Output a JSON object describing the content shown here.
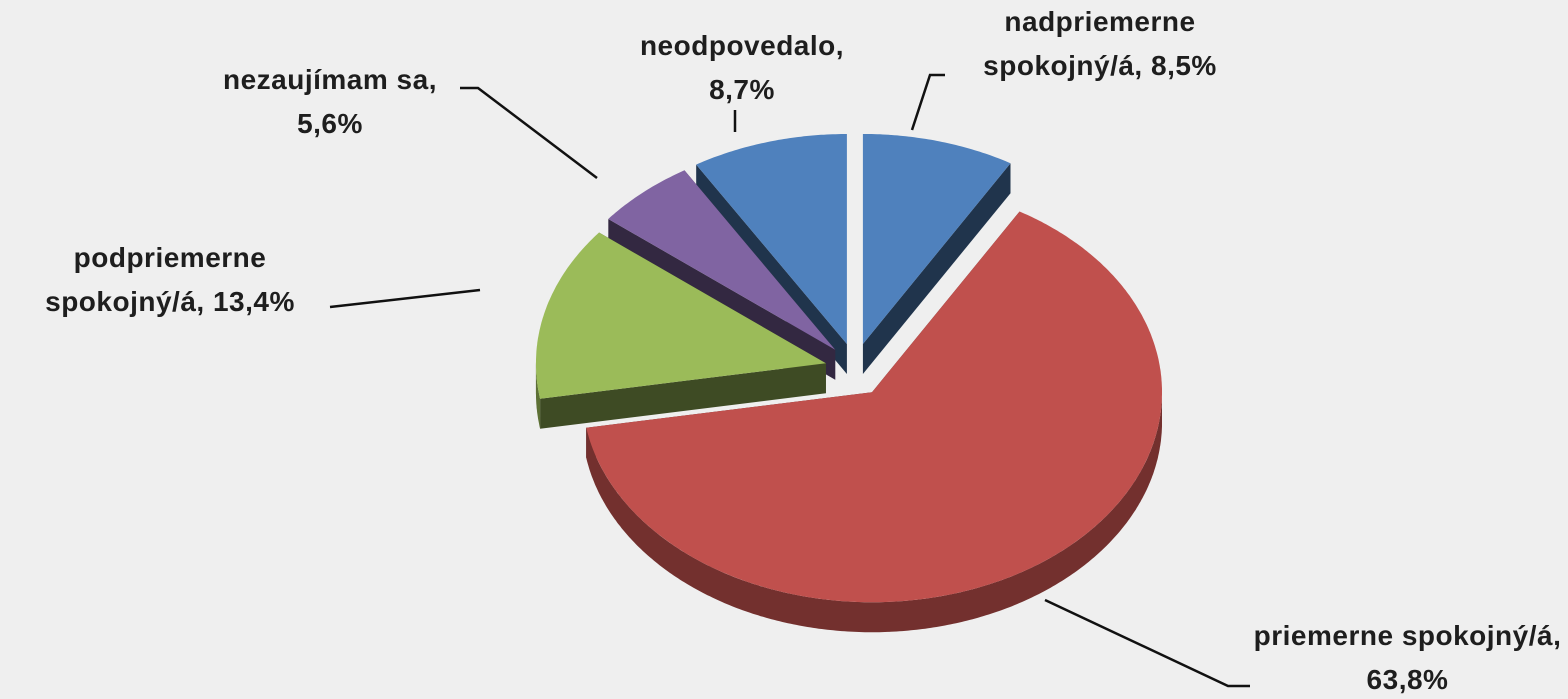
{
  "chart_data": {
    "type": "pie",
    "categories": [
      "nadpriemerne spokojný/á,",
      "priemerne spokojný/á,",
      "podpriemerne spokojný/á,",
      "nezaujímam sa,",
      "neodpovedalo,"
    ],
    "values": [
      8.5,
      63.8,
      13.4,
      5.6,
      8.7
    ],
    "value_labels": [
      "8,5%",
      "63,8%",
      "13,4%",
      "5,6%",
      "8,7%"
    ],
    "colors": [
      "#4f81bd",
      "#c0504d",
      "#9bbb59",
      "#8064a2",
      "#4f81bd"
    ]
  }
}
